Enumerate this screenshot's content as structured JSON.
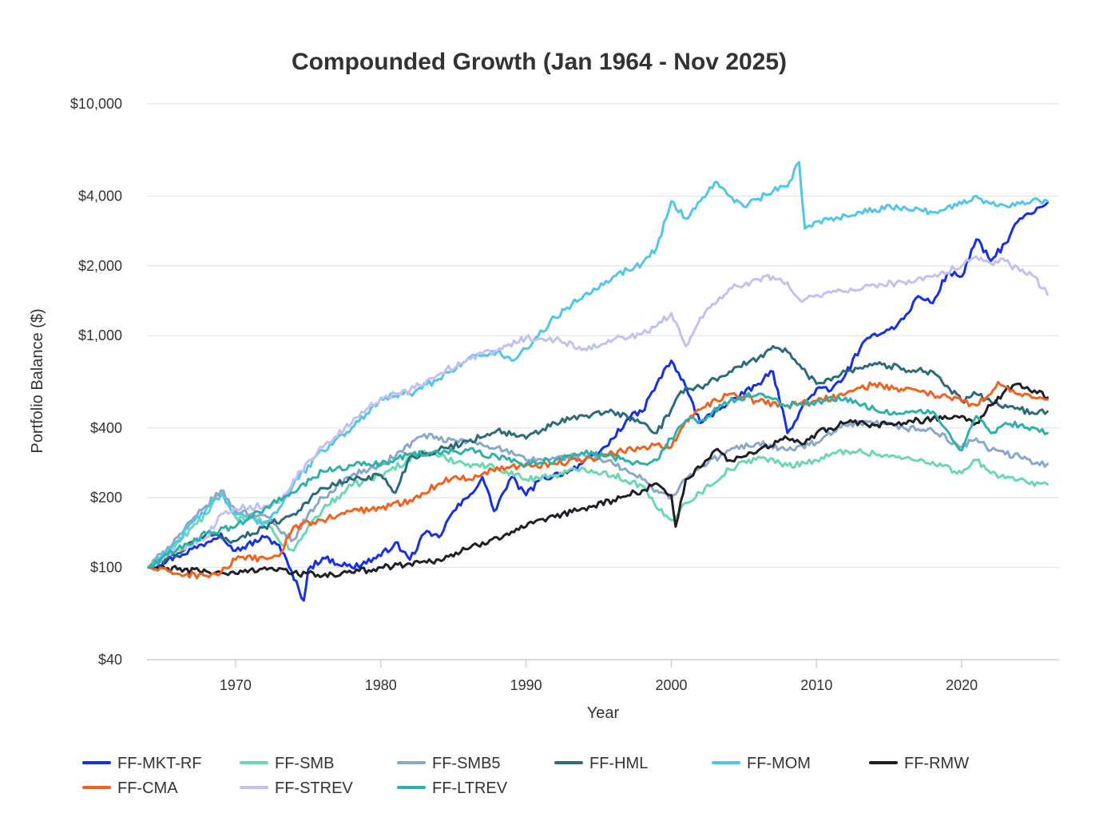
{
  "chart_data": {
    "type": "line",
    "title": "Compounded Growth (Jan 1964 - Nov 2025)",
    "xlabel": "Year",
    "ylabel": "Portfolio Balance ($)",
    "y_scale": "log",
    "ylim": [
      40,
      10000
    ],
    "xlim": [
      1963.9,
      2026.7
    ],
    "y_ticks": [
      {
        "value": 40,
        "label": "$40"
      },
      {
        "value": 100,
        "label": "$100"
      },
      {
        "value": 200,
        "label": "$200"
      },
      {
        "value": 400,
        "label": "$400"
      },
      {
        "value": 1000,
        "label": "$1,000"
      },
      {
        "value": 2000,
        "label": "$2,000"
      },
      {
        "value": 4000,
        "label": "$4,000"
      },
      {
        "value": 10000,
        "label": "$10,000"
      }
    ],
    "x_ticks": [
      {
        "value": 1970,
        "label": "1970"
      },
      {
        "value": 1980,
        "label": "1980"
      },
      {
        "value": 1990,
        "label": "1990"
      },
      {
        "value": 2000,
        "label": "2000"
      },
      {
        "value": 2010,
        "label": "2010"
      },
      {
        "value": 2020,
        "label": "2020"
      }
    ],
    "grid": true,
    "legend": "bottom",
    "series": [
      {
        "name": "FF-MKT-RF",
        "color": "#1530e6",
        "x": [
          1964,
          1966,
          1968,
          1969,
          1970,
          1972,
          1973,
          1974.7,
          1975,
          1976,
          1978,
          1980,
          1981,
          1982,
          1983,
          1984,
          1985,
          1986,
          1987,
          1987.8,
          1989,
          1990,
          1991,
          1993,
          1995,
          1996,
          1997,
          1998,
          1999,
          2000,
          2001,
          2002,
          2003,
          2004,
          2005,
          2006,
          2007,
          2008,
          2009,
          2010,
          2011,
          2012,
          2013,
          2014,
          2015,
          2016,
          2017,
          2018,
          2019,
          2020,
          2021,
          2022,
          2023,
          2024,
          2025,
          2025.9
        ],
        "y": [
          100,
          112,
          128,
          140,
          118,
          135,
          125,
          72,
          98,
          110,
          100,
          112,
          128,
          108,
          140,
          135,
          175,
          200,
          245,
          175,
          245,
          205,
          240,
          262,
          310,
          360,
          440,
          470,
          620,
          780,
          600,
          420,
          470,
          520,
          560,
          620,
          700,
          380,
          490,
          590,
          580,
          680,
          880,
          1020,
          1060,
          1180,
          1480,
          1380,
          1860,
          1800,
          2600,
          2100,
          2500,
          3200,
          3400,
          3750
        ]
      },
      {
        "name": "FF-SMB",
        "color": "#6ad8b0",
        "x": [
          1964,
          1966,
          1968,
          1969,
          1970,
          1972,
          1973,
          1974,
          1975,
          1976,
          1978,
          1980,
          1983,
          1984,
          1986,
          1988,
          1990,
          1992,
          1994,
          1996,
          1998,
          1999,
          2000,
          2001,
          2002,
          2004,
          2006,
          2008,
          2010,
          2012,
          2014,
          2016,
          2018,
          2020,
          2021,
          2022,
          2024,
          2025,
          2025.9
        ],
        "y": [
          100,
          128,
          170,
          212,
          165,
          158,
          130,
          118,
          150,
          178,
          225,
          250,
          318,
          300,
          280,
          270,
          240,
          250,
          268,
          250,
          225,
          180,
          160,
          190,
          210,
          265,
          300,
          275,
          290,
          320,
          310,
          295,
          285,
          255,
          290,
          255,
          240,
          225,
          228
        ]
      },
      {
        "name": "FF-SMB5",
        "color": "#8aa8c8",
        "x": [
          1964,
          1966,
          1968,
          1969,
          1970,
          1972,
          1973,
          1974,
          1975,
          1976,
          1978,
          1980,
          1983,
          1984,
          1986,
          1988,
          1990,
          1992,
          1994,
          1996,
          1998,
          1999,
          2000,
          2001,
          2002,
          2004,
          2006,
          2008,
          2010,
          2012,
          2014,
          2016,
          2018,
          2020,
          2021,
          2022,
          2024,
          2025,
          2025.9
        ],
        "y": [
          100,
          135,
          185,
          215,
          175,
          168,
          145,
          132,
          170,
          200,
          250,
          275,
          375,
          355,
          350,
          330,
          290,
          295,
          305,
          280,
          240,
          215,
          200,
          240,
          270,
          320,
          345,
          320,
          345,
          410,
          420,
          400,
          390,
          330,
          360,
          320,
          300,
          280,
          280
        ]
      },
      {
        "name": "FF-HML",
        "color": "#2e6b7a",
        "x": [
          1964,
          1966,
          1968,
          1970,
          1972,
          1974,
          1976,
          1978,
          1980,
          1981,
          1982,
          1984,
          1986,
          1988,
          1990,
          1992,
          1994,
          1996,
          1998,
          1999,
          2000,
          2001,
          2002,
          2004,
          2006,
          2007,
          2008,
          2009,
          2010,
          2012,
          2014,
          2016,
          2018,
          2020,
          2021,
          2022,
          2024,
          2025,
          2025.9
        ],
        "y": [
          100,
          115,
          140,
          130,
          150,
          170,
          220,
          240,
          250,
          210,
          300,
          320,
          350,
          390,
          360,
          420,
          450,
          470,
          420,
          380,
          480,
          600,
          600,
          700,
          800,
          900,
          850,
          720,
          620,
          700,
          760,
          720,
          700,
          520,
          560,
          520,
          480,
          460,
          470
        ]
      },
      {
        "name": "FF-MOM",
        "color": "#52c6e6",
        "x": [
          1964,
          1966,
          1968,
          1969,
          1970,
          1972,
          1973,
          1974,
          1976,
          1978,
          1979,
          1980,
          1982,
          1984,
          1986,
          1988,
          1989,
          1990,
          1992,
          1994,
          1996,
          1998,
          1999,
          2000,
          2001,
          2002,
          2003,
          2004,
          2005,
          2007,
          2008,
          2008.8,
          2009.2,
          2010,
          2012,
          2014,
          2016,
          2018,
          2020,
          2021,
          2022,
          2024,
          2025,
          2025.9
        ],
        "y": [
          100,
          130,
          180,
          205,
          170,
          155,
          180,
          230,
          320,
          400,
          460,
          540,
          560,
          650,
          800,
          850,
          780,
          880,
          1200,
          1500,
          1800,
          2050,
          2400,
          3800,
          3200,
          3800,
          4600,
          4000,
          3600,
          4200,
          4400,
          5600,
          2900,
          3100,
          3300,
          3500,
          3600,
          3400,
          3700,
          4000,
          3700,
          3700,
          3900,
          3800
        ]
      },
      {
        "name": "FF-RMW",
        "color": "#1f1f28",
        "x": [
          1964,
          1966,
          1968,
          1970,
          1972,
          1974,
          1976,
          1978,
          1980,
          1982,
          1984,
          1986,
          1988,
          1990,
          1992,
          1994,
          1996,
          1998,
          1999,
          2000,
          2000.3,
          2001,
          2002,
          2003,
          2004,
          2006,
          2008,
          2009,
          2010,
          2012,
          2014,
          2016,
          2018,
          2020,
          2021,
          2022,
          2023,
          2024,
          2025,
          2025.9
        ],
        "y": [
          100,
          98,
          96,
          94,
          100,
          95,
          92,
          95,
          100,
          104,
          108,
          120,
          135,
          150,
          165,
          180,
          195,
          215,
          230,
          205,
          150,
          240,
          270,
          320,
          290,
          320,
          360,
          340,
          380,
          420,
          410,
          420,
          440,
          450,
          420,
          500,
          580,
          620,
          580,
          540
        ]
      },
      {
        "name": "FF-CMA",
        "color": "#f0621f",
        "x": [
          1964,
          1966,
          1968,
          1969,
          1970,
          1972,
          1973,
          1974,
          1976,
          1978,
          1980,
          1982,
          1984,
          1985,
          1986,
          1988,
          1990,
          1992,
          1994,
          1996,
          1998,
          1999,
          2000,
          2001,
          2002,
          2004,
          2006,
          2008,
          2010,
          2012,
          2014,
          2016,
          2018,
          2020,
          2021,
          2022,
          2022.5,
          2023,
          2024,
          2025,
          2025.9
        ],
        "y": [
          100,
          94,
          92,
          95,
          108,
          110,
          112,
          150,
          160,
          175,
          180,
          195,
          230,
          245,
          240,
          270,
          275,
          280,
          290,
          310,
          330,
          340,
          330,
          430,
          480,
          560,
          520,
          500,
          520,
          560,
          620,
          580,
          560,
          520,
          500,
          560,
          630,
          600,
          560,
          540,
          530
        ]
      },
      {
        "name": "FF-STREV",
        "color": "#c2c2f2",
        "x": [
          1964,
          1966,
          1968,
          1969,
          1970,
          1972,
          1973,
          1974,
          1976,
          1978,
          1980,
          1982,
          1984,
          1986,
          1988,
          1990,
          1992,
          1994,
          1996,
          1998,
          1999,
          2000,
          2001,
          2002,
          2004,
          2006,
          2007,
          2008,
          2009,
          2010,
          2012,
          2014,
          2016,
          2018,
          2020,
          2021,
          2022,
          2023,
          2024,
          2025,
          2025.9
        ],
        "y": [
          100,
          120,
          135,
          170,
          180,
          185,
          190,
          240,
          330,
          420,
          540,
          580,
          680,
          800,
          860,
          980,
          960,
          880,
          960,
          1020,
          1100,
          1250,
          900,
          1200,
          1600,
          1750,
          1800,
          1700,
          1400,
          1500,
          1550,
          1650,
          1700,
          1800,
          2000,
          2200,
          2050,
          2100,
          1900,
          1800,
          1500
        ]
      },
      {
        "name": "FF-LTREV",
        "color": "#2fb0a8",
        "x": [
          1964,
          1966,
          1968,
          1970,
          1972,
          1974,
          1976,
          1978,
          1980,
          1982,
          1984,
          1986,
          1988,
          1990,
          1992,
          1994,
          1996,
          1998,
          1999,
          2000,
          2001,
          2002,
          2004,
          2006,
          2008,
          2010,
          2012,
          2014,
          2016,
          2018,
          2020,
          2021,
          2022,
          2023,
          2024,
          2025,
          2025.9
        ],
        "y": [
          100,
          120,
          140,
          150,
          180,
          210,
          260,
          275,
          280,
          310,
          310,
          320,
          300,
          280,
          290,
          310,
          300,
          280,
          290,
          360,
          430,
          430,
          520,
          560,
          500,
          520,
          540,
          480,
          460,
          470,
          320,
          450,
          380,
          420,
          410,
          400,
          380
        ]
      }
    ]
  }
}
